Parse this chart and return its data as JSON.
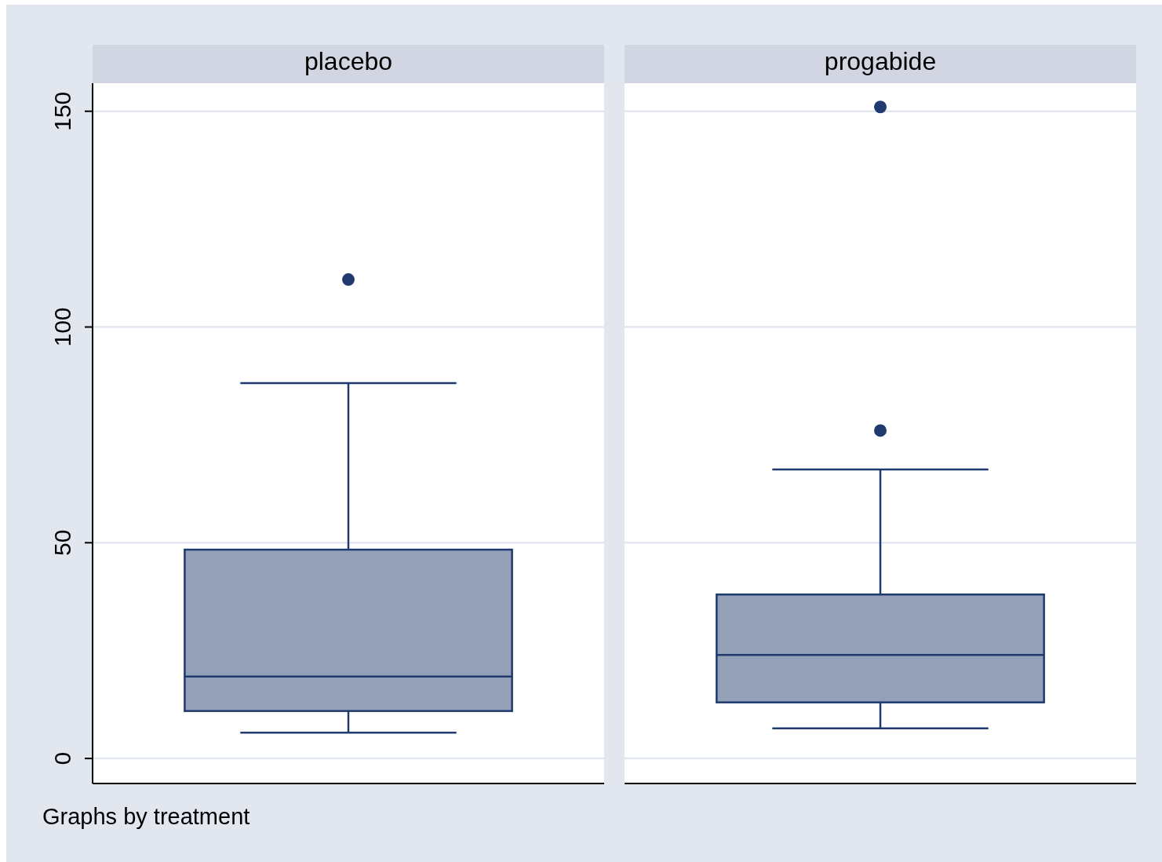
{
  "chart_data": {
    "type": "box",
    "categories": [
      "placebo",
      "progabide"
    ],
    "color": "#94a0b8",
    "boxes": [
      {
        "low": 6,
        "q1": 11,
        "median": 19,
        "q3": 48.4,
        "high": 87,
        "outliers": [
          111
        ]
      },
      {
        "low": 7,
        "q1": 13,
        "median": 24,
        "q3": 38,
        "high": 67,
        "outliers": [
          76,
          151
        ]
      }
    ],
    "ylim": [
      -5.8,
      156.5
    ],
    "yticks": [
      0,
      50,
      100,
      150
    ],
    "grid": "y",
    "annotations": [
      "Graphs by treatment"
    ]
  }
}
